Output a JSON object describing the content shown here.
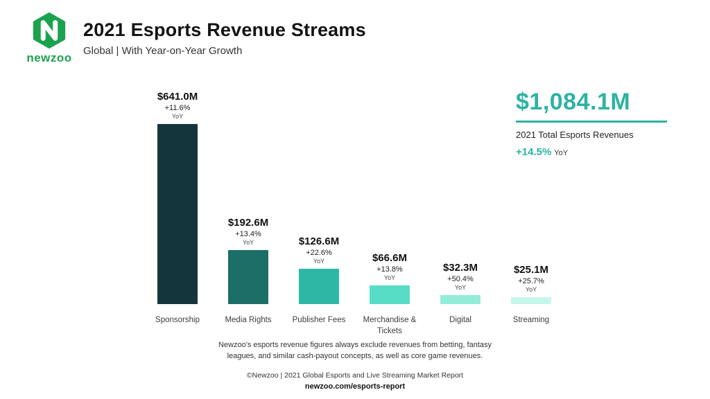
{
  "header": {
    "brand": "newzoo",
    "title": "2021 Esports Revenue Streams",
    "subtitle": "Global | With Year-on-Year Growth"
  },
  "chart_data": {
    "type": "bar",
    "title": "2021 Esports Revenue Streams",
    "subtitle": "Global | With Year-on-Year Growth",
    "categories": [
      "Sponsorship",
      "Media Rights",
      "Publisher Fees",
      "Merchandise & Tickets",
      "Digital",
      "Streaming"
    ],
    "values": [
      641.0,
      192.6,
      126.6,
      66.6,
      32.3,
      25.1
    ],
    "value_labels": [
      "$641.0M",
      "$192.6M",
      "$126.6M",
      "$66.6M",
      "$32.3M",
      "$25.1M"
    ],
    "yoy_labels": [
      "+11.6%",
      "+13.4%",
      "+22.6%",
      "+13.8%",
      "+50.4%",
      "+25.7%"
    ],
    "yoy_suffix": "YoY",
    "bar_colors": [
      "#15353c",
      "#1b6f66",
      "#2db8a5",
      "#57dcc5",
      "#93ecda",
      "#c5f6ea"
    ],
    "ylim": [
      0,
      641
    ],
    "legend": "none",
    "grid": "off"
  },
  "total": {
    "value": "$1,084.1M",
    "label": "2021 Total Esports Revenues",
    "growth": "+14.5%",
    "growth_suffix": "YoY",
    "accent_color": "#2cb3a2"
  },
  "footer": {
    "note": "Newzoo's esports revenue figures always exclude revenues from betting, fantasy leagues, and similar cash-payout concepts, as well as core game revenues.",
    "copyright": "©Newzoo | 2021 Global Esports and Live Streaming Market Report",
    "link": "newzoo.com/esports-report"
  }
}
